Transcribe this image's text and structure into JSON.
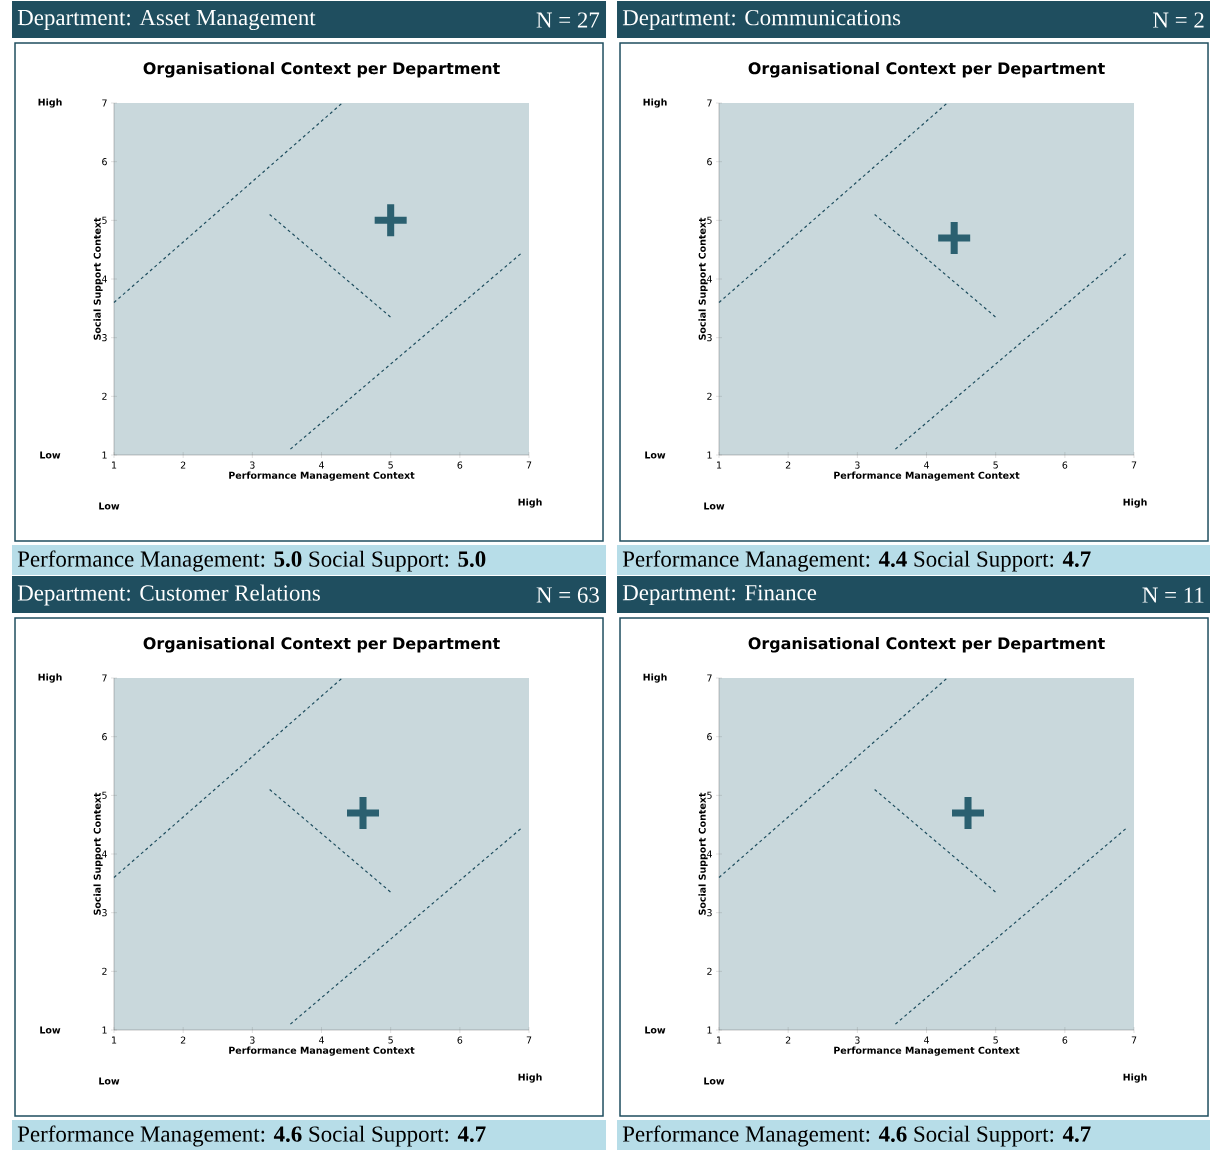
{
  "chart_data": [
    {
      "type": "scatter",
      "title": "Organisational Context per Department",
      "xlabel": "Performance Management Context",
      "ylabel": "Social Support Context",
      "xlim": [
        1,
        7
      ],
      "ylim": [
        1,
        7
      ],
      "xticks": [
        1,
        2,
        3,
        4,
        5,
        6,
        7
      ],
      "yticks": [
        1,
        2,
        3,
        4,
        5,
        6,
        7
      ],
      "series": [
        {
          "color": "#2b6070",
          "marker": "cross",
          "x": [
            5.0
          ],
          "values": [
            5.0
          ]
        },
        {
          "type": "line",
          "color": "#1f4e5f",
          "line_style": "dashed",
          "x": [
            1,
            4.3
          ],
          "values": [
            3.6,
            7
          ]
        },
        {
          "type": "line",
          "color": "#1f4e5f",
          "line_style": "dashed",
          "x": [
            3.25,
            5.0
          ],
          "values": [
            5.1,
            3.35
          ]
        },
        {
          "type": "line",
          "color": "#1f4e5f",
          "line_style": "dashed",
          "x": [
            3.55,
            6.9
          ],
          "values": [
            1.1,
            4.45
          ]
        }
      ],
      "annotations": [
        "Department: Asset Management",
        "N = 27",
        "Performance Management: **5.0** Social Support: **5.0**",
        "High",
        "Low",
        "Low",
        "High"
      ]
    },
    {
      "type": "scatter",
      "title": "Organisational Context per Department",
      "xlabel": "Performance Management Context",
      "ylabel": "Social Support Context",
      "xlim": [
        1,
        7
      ],
      "ylim": [
        1,
        7
      ],
      "xticks": [
        1,
        2,
        3,
        4,
        5,
        6,
        7
      ],
      "yticks": [
        1,
        2,
        3,
        4,
        5,
        6,
        7
      ],
      "series": [
        {
          "color": "#2b6070",
          "marker": "cross",
          "x": [
            4.4
          ],
          "values": [
            4.7
          ]
        },
        {
          "type": "line",
          "color": "#1f4e5f",
          "line_style": "dashed",
          "x": [
            1,
            4.3
          ],
          "values": [
            3.6,
            7
          ]
        },
        {
          "type": "line",
          "color": "#1f4e5f",
          "line_style": "dashed",
          "x": [
            3.25,
            5.0
          ],
          "values": [
            5.1,
            3.35
          ]
        },
        {
          "type": "line",
          "color": "#1f4e5f",
          "line_style": "dashed",
          "x": [
            3.55,
            6.9
          ],
          "values": [
            1.1,
            4.45
          ]
        }
      ],
      "annotations": [
        "Department: Communications",
        "N = 2",
        "Performance Management: **4.4** Social Support: **4.7**",
        "High",
        "Low",
        "Low",
        "High"
      ]
    },
    {
      "type": "scatter",
      "title": "Organisational Context per Department",
      "xlabel": "Performance Management Context",
      "ylabel": "Social Support Context",
      "xlim": [
        1,
        7
      ],
      "ylim": [
        1,
        7
      ],
      "xticks": [
        1,
        2,
        3,
        4,
        5,
        6,
        7
      ],
      "yticks": [
        1,
        2,
        3,
        4,
        5,
        6,
        7
      ],
      "series": [
        {
          "color": "#2b6070",
          "marker": "cross",
          "x": [
            4.6
          ],
          "values": [
            4.7
          ]
        },
        {
          "type": "line",
          "color": "#1f4e5f",
          "line_style": "dashed",
          "x": [
            1,
            4.3
          ],
          "values": [
            3.6,
            7
          ]
        },
        {
          "type": "line",
          "color": "#1f4e5f",
          "line_style": "dashed",
          "x": [
            3.25,
            5.0
          ],
          "values": [
            5.1,
            3.35
          ]
        },
        {
          "type": "line",
          "color": "#1f4e5f",
          "line_style": "dashed",
          "x": [
            3.55,
            6.9
          ],
          "values": [
            1.1,
            4.45
          ]
        }
      ],
      "annotations": [
        "Department: Customer Relations",
        "N = 63",
        "Performance Management: **4.6** Social Support: **4.7**",
        "High",
        "Low",
        "Low",
        "High"
      ]
    },
    {
      "type": "scatter",
      "title": "Organisational Context per Department",
      "xlabel": "Performance Management Context",
      "ylabel": "Social Support Context",
      "xlim": [
        1,
        7
      ],
      "ylim": [
        1,
        7
      ],
      "xticks": [
        1,
        2,
        3,
        4,
        5,
        6,
        7
      ],
      "yticks": [
        1,
        2,
        3,
        4,
        5,
        6,
        7
      ],
      "series": [
        {
          "color": "#2b6070",
          "marker": "cross",
          "x": [
            4.6
          ],
          "values": [
            4.7
          ]
        },
        {
          "type": "line",
          "color": "#1f4e5f",
          "line_style": "dashed",
          "x": [
            1,
            4.3
          ],
          "values": [
            3.6,
            7
          ]
        },
        {
          "type": "line",
          "color": "#1f4e5f",
          "line_style": "dashed",
          "x": [
            3.25,
            5.0
          ],
          "values": [
            5.1,
            3.35
          ]
        },
        {
          "type": "line",
          "color": "#1f4e5f",
          "line_style": "dashed",
          "x": [
            3.55,
            6.9
          ],
          "values": [
            1.1,
            4.45
          ]
        }
      ],
      "annotations": [
        "Department: Finance",
        "N = 11",
        "Performance Management: **4.6** Social Support: **4.7**",
        "High",
        "Low",
        "Low",
        "High"
      ]
    }
  ]
}
